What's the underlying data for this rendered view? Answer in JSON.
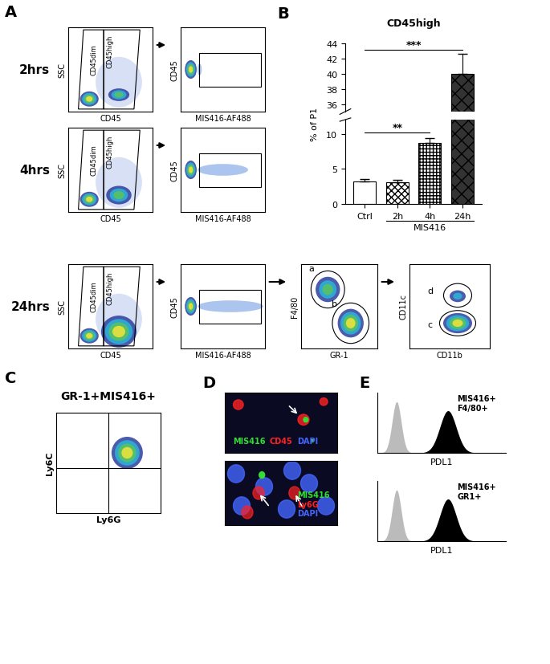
{
  "panels": {
    "A": {
      "label": "A",
      "rows": [
        {
          "time": "2hrs",
          "plots": [
            {
              "x_label": "CD45",
              "y_label": "SSC",
              "gates": [
                "CD45dim",
                "CD45high"
              ]
            },
            {
              "x_label": "MIS416-AF488",
              "y_label": "CD45"
            }
          ]
        },
        {
          "time": "4hrs",
          "plots": [
            {
              "x_label": "CD45",
              "y_label": "SSC",
              "gates": [
                "CD45dim",
                "CD45high"
              ]
            },
            {
              "x_label": "MIS416-AF488",
              "y_label": "CD45"
            }
          ]
        },
        {
          "time": "24hrs",
          "plots": [
            {
              "x_label": "CD45",
              "y_label": "SSC",
              "gates": [
                "CD45dim",
                "CD45high"
              ]
            },
            {
              "x_label": "MIS416-AF488",
              "y_label": "CD45"
            },
            {
              "x_label": "GR-1",
              "y_label": "F4/80",
              "gates": [
                "a",
                "b"
              ]
            },
            {
              "x_label": "CD11b",
              "y_label": "CD11c",
              "gates": [
                "d",
                "c"
              ]
            }
          ]
        }
      ]
    },
    "B": {
      "label": "B"
    },
    "C": {
      "label": "C",
      "title": "GR-1+MIS416+",
      "x_label": "Ly6G",
      "y_label": "Ly6C"
    },
    "D": {
      "label": "D",
      "images": [
        {
          "stains": [
            {
              "text": "MIS416",
              "color": "#33dd33"
            },
            {
              "text": "CD45",
              "color": "#ff2222"
            },
            {
              "text": "DAPI",
              "color": "#4466ff"
            }
          ]
        },
        {
          "stains": [
            {
              "text": "MIS416",
              "color": "#33dd33"
            },
            {
              "text": "Ly6G",
              "color": "#ff2222"
            },
            {
              "text": "DAPI",
              "color": "#4466ff"
            }
          ]
        }
      ]
    },
    "E": {
      "label": "E",
      "histograms": [
        {
          "text": "MIS416+\nF4/80+",
          "x_label": "PDL1"
        },
        {
          "text": "MIS416+\nGR1+",
          "x_label": "PDL1"
        }
      ]
    }
  },
  "chart_data": {
    "type": "bar",
    "title": "CD45high",
    "y_label": "% of P1",
    "categories": [
      "Ctrl",
      "2h",
      "4h",
      "24h"
    ],
    "values": [
      3.2,
      3.1,
      8.7,
      40.0
    ],
    "errors": [
      0.4,
      0.3,
      0.7,
      2.6
    ],
    "colors": [
      "#ffffff",
      "#ffffff",
      "#ffffff",
      "#333333"
    ],
    "ylim": [
      0,
      44
    ],
    "ybreak": [
      12,
      35
    ],
    "yticks": [
      0,
      5,
      10,
      36,
      38,
      40,
      42,
      44
    ],
    "annotations": [
      {
        "text": "**",
        "from": "Ctrl",
        "to": "4h"
      },
      {
        "text": "***",
        "from": "Ctrl",
        "to": "24h"
      }
    ],
    "group": {
      "text": "MIS416",
      "from": "2h",
      "to": "24h"
    }
  }
}
